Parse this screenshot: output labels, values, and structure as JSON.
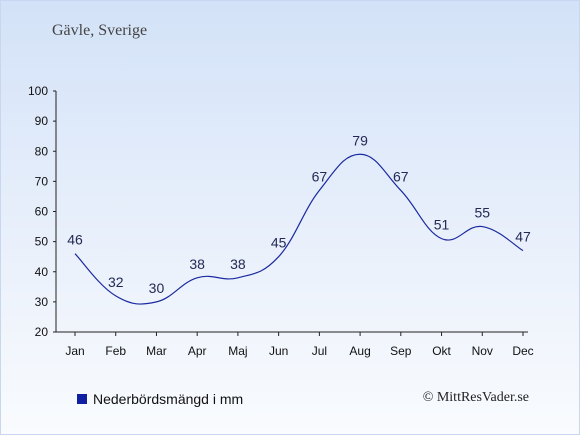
{
  "header": {
    "location": "Gävle, Sverige"
  },
  "chart_data": {
    "type": "line",
    "categories": [
      "Jan",
      "Feb",
      "Mar",
      "Apr",
      "Maj",
      "Jun",
      "Jul",
      "Aug",
      "Sep",
      "Okt",
      "Nov",
      "Dec"
    ],
    "series": [
      {
        "name": "Nederbördsmängd i mm",
        "values": [
          46,
          32,
          30,
          38,
          38,
          45,
          67,
          79,
          67,
          51,
          55,
          47
        ],
        "color": "#1a2aa0"
      }
    ],
    "ylim": [
      20,
      100
    ],
    "yticks": [
      20,
      30,
      40,
      50,
      60,
      70,
      80,
      90,
      100
    ],
    "grid": false,
    "legend_position": "bottom-left"
  },
  "legend": {
    "label": "Nederbördsmängd i mm",
    "color": "#1020a0"
  },
  "footer": {
    "credit": "© MittResVader.se"
  }
}
